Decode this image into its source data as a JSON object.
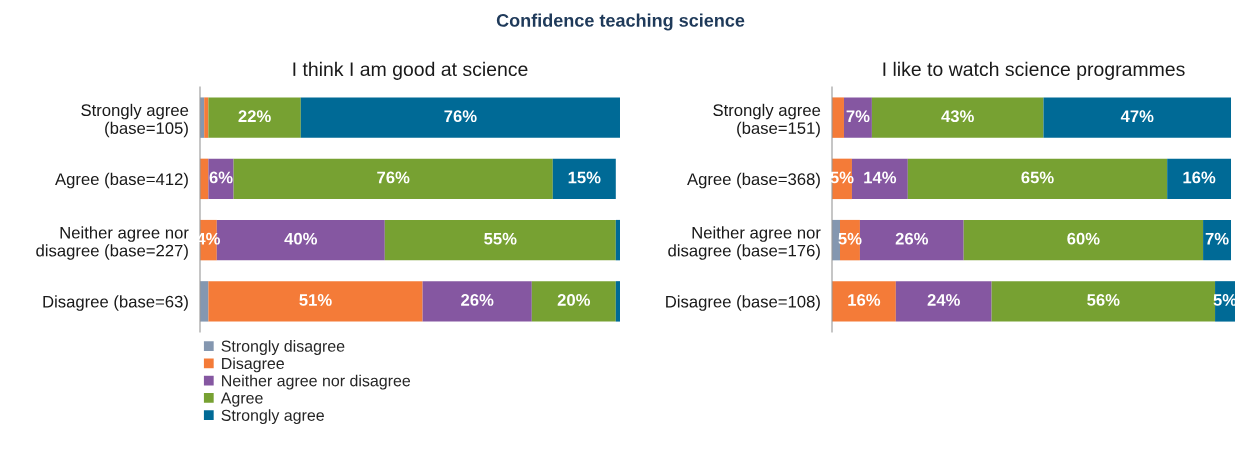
{
  "chart_data": [
    {
      "type": "bar",
      "orientation": "horizontal",
      "stacked": true,
      "title": "Confidence teaching science",
      "subtitle": "I think I am good at science",
      "legend": "bottom",
      "categories": [
        "Strongly agree\n(base=105)",
        "Agree (base=412)",
        "Neither agree nor\ndisagree (base=227)",
        "Disagree (base=63)"
      ],
      "series": [
        {
          "name": "Strongly disagree",
          "color": "#8497b0",
          "values": [
            1,
            0,
            0,
            2
          ],
          "value_labels": [
            null,
            null,
            null,
            null
          ]
        },
        {
          "name": "Disagree",
          "color": "#f47b38",
          "values": [
            1,
            2,
            4,
            51
          ],
          "value_labels": [
            null,
            null,
            "4%",
            "51%"
          ]
        },
        {
          "name": "Neither agree nor disagree",
          "color": "#8557a1",
          "values": [
            0,
            6,
            40,
            26
          ],
          "value_labels": [
            null,
            "6%",
            "40%",
            "26%"
          ]
        },
        {
          "name": "Agree",
          "color": "#77a132",
          "values": [
            22,
            76,
            55,
            20
          ],
          "value_labels": [
            "22%",
            "76%",
            "55%",
            "20%"
          ]
        },
        {
          "name": "Strongly agree",
          "color": "#006a96",
          "values": [
            76,
            15,
            1,
            1
          ],
          "value_labels": [
            "76%",
            "15%",
            null,
            null
          ]
        }
      ]
    },
    {
      "type": "bar",
      "orientation": "horizontal",
      "stacked": true,
      "subtitle": "I like to watch science programmes",
      "categories": [
        "Strongly agree\n(base=151)",
        "Agree (base=368)",
        "Neither agree nor\ndisagree (base=176)",
        "Disagree (base=108)"
      ],
      "series": [
        {
          "color": "#8497b0",
          "values": [
            0,
            0,
            2,
            0
          ],
          "value_labels": [
            null,
            null,
            null,
            null
          ]
        },
        {
          "color": "#f47b38",
          "values": [
            3,
            5,
            5,
            16
          ],
          "value_labels": [
            null,
            "5%",
            "5%",
            "16%"
          ]
        },
        {
          "color": "#8557a1",
          "values": [
            7,
            14,
            26,
            24
          ],
          "value_labels": [
            "7%",
            "14%",
            "26%",
            "24%"
          ]
        },
        {
          "color": "#77a132",
          "values": [
            43,
            65,
            60,
            56
          ],
          "value_labels": [
            "43%",
            "65%",
            "60%",
            "56%"
          ]
        },
        {
          "color": "#006a96",
          "values": [
            47,
            16,
            7,
            5
          ],
          "value_labels": [
            "47%",
            "16%",
            "7%",
            "5%"
          ]
        }
      ]
    }
  ]
}
